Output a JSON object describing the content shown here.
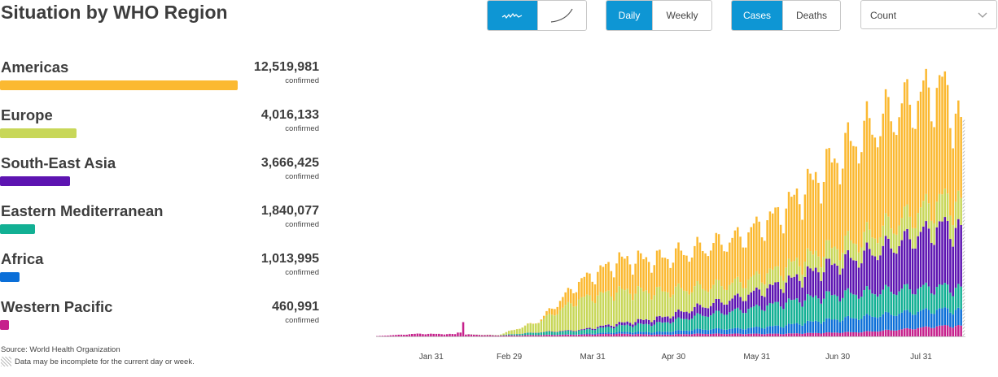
{
  "header": {
    "title": "Situation by WHO Region"
  },
  "controls": {
    "chart_style": [
      {
        "icon": "bar-chart-icon",
        "active": true
      },
      {
        "icon": "cumulative-curve-icon",
        "active": false
      }
    ],
    "frequency": [
      {
        "label": "Daily",
        "active": true
      },
      {
        "label": "Weekly",
        "active": false
      }
    ],
    "metric": [
      {
        "label": "Cases",
        "active": true
      },
      {
        "label": "Deaths",
        "active": false
      }
    ],
    "scale_select": {
      "value": "Count"
    }
  },
  "regions": [
    {
      "name": "Americas",
      "value": 12519981,
      "display": "12,519,981",
      "unit": "confirmed",
      "color": "#fbb931"
    },
    {
      "name": "Europe",
      "value": 4016133,
      "display": "4,016,133",
      "unit": "confirmed",
      "color": "#c8d759"
    },
    {
      "name": "South-East Asia",
      "value": 3666425,
      "display": "3,666,425",
      "unit": "confirmed",
      "color": "#5d14b1"
    },
    {
      "name": "Eastern Mediterranean",
      "value": 1840077,
      "display": "1,840,077",
      "unit": "confirmed",
      "color": "#12b094"
    },
    {
      "name": "Africa",
      "value": 1013995,
      "display": "1,013,995",
      "unit": "confirmed",
      "color": "#0b6fd8"
    },
    {
      "name": "Western Pacific",
      "value": 460991,
      "display": "460,991",
      "unit": "confirmed",
      "color": "#c6218c"
    }
  ],
  "footer": {
    "source": "Source: World Health Organization",
    "note": "Data may be incomplete for the current day or week."
  },
  "chart_data": {
    "type": "bar",
    "stacked": true,
    "x_axis": {
      "type": "date",
      "tick_labels": [
        "Jan 31",
        "Feb 29",
        "Mar 31",
        "Apr 30",
        "May 31",
        "Jun 30",
        "Jul 31"
      ]
    },
    "y_axis": {
      "visible": false,
      "range": [
        0,
        300000
      ]
    },
    "grid": false,
    "last_bar_hatched": true,
    "series_order": [
      "Western Pacific",
      "Africa",
      "Eastern Mediterranean",
      "South-East Asia",
      "Europe",
      "Americas"
    ],
    "x": [
      "Jan 11",
      "Jan 26",
      "Feb 10",
      "Feb 25",
      "Mar 11",
      "Mar 26",
      "Apr 10",
      "Apr 25",
      "May 10",
      "May 25",
      "Jun 09",
      "Jun 24",
      "Jul 09",
      "Jul 24",
      "Aug 08",
      "Aug 16"
    ],
    "series": [
      {
        "name": "Western Pacific",
        "values": [
          300,
          3000,
          2500,
          1000,
          1500,
          2000,
          3000,
          2000,
          3000,
          3000,
          3000,
          4000,
          5000,
          8000,
          12000,
          12000
        ]
      },
      {
        "name": "Africa",
        "values": [
          0,
          0,
          0,
          0,
          100,
          500,
          2000,
          3000,
          5000,
          6000,
          9000,
          14000,
          17000,
          19000,
          19000,
          18000
        ]
      },
      {
        "name": "Eastern Mediterranean",
        "values": [
          0,
          0,
          0,
          200,
          3000,
          4000,
          7000,
          10000,
          16000,
          21000,
          26000,
          28000,
          28000,
          27000,
          26000,
          25000
        ]
      },
      {
        "name": "South-East Asia",
        "values": [
          0,
          0,
          0,
          0,
          200,
          800,
          3000,
          6000,
          10000,
          15000,
          22000,
          32000,
          42000,
          55000,
          70000,
          68000
        ]
      },
      {
        "name": "Europe",
        "values": [
          0,
          0,
          0,
          300,
          12000,
          35000,
          37000,
          30000,
          22000,
          17000,
          17000,
          19000,
          20000,
          25000,
          30000,
          30000
        ]
      },
      {
        "name": "Americas",
        "values": [
          0,
          0,
          0,
          0,
          500,
          20000,
          35000,
          38000,
          45000,
          52000,
          65000,
          90000,
          120000,
          130000,
          130000,
          84000
        ]
      }
    ]
  }
}
